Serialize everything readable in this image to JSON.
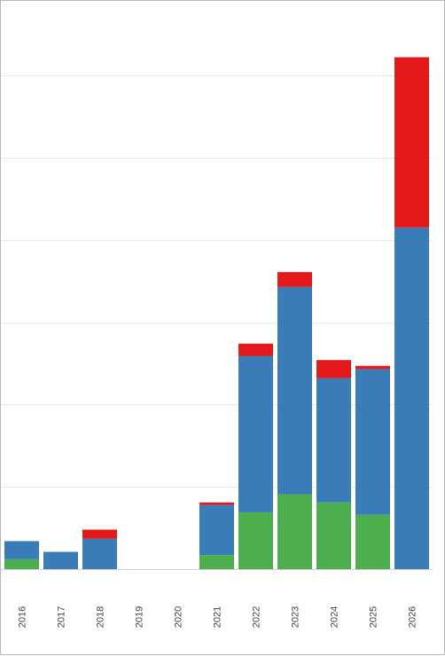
{
  "chart_data": {
    "type": "bar",
    "stacked": true,
    "categories": [
      "2016",
      "2017",
      "2018",
      "2019",
      "2020",
      "2021",
      "2022",
      "2023",
      "2024",
      "2025",
      "2026"
    ],
    "series": [
      {
        "color": "#4cae4c",
        "values": [
          12,
          0,
          0,
          0,
          0,
          17,
          69,
          91,
          81,
          66,
          0
        ]
      },
      {
        "color": "#3a7cb8",
        "values": [
          22,
          21,
          37,
          0,
          0,
          61,
          190,
          252,
          151,
          177,
          415
        ]
      },
      {
        "color": "#e3191c",
        "values": [
          0,
          0,
          11,
          0,
          0,
          3,
          15,
          18,
          22,
          4,
          207
        ]
      }
    ],
    "ylim": [
      0,
      600
    ],
    "grid": true,
    "x_tick_rotation": -90,
    "y_tick_labels_shown": false,
    "legend": "none"
  }
}
